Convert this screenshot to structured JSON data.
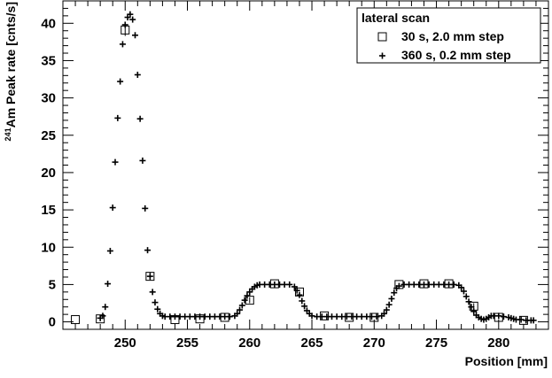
{
  "chart_data": {
    "type": "scatter",
    "xlabel": "Position [mm]",
    "ylabel": {
      "superscript": "241",
      "text": "Am Peak rate [cnts/s]"
    },
    "xlim": [
      245,
      284
    ],
    "ylim": [
      -1,
      43
    ],
    "x_ticks": [
      250,
      255,
      260,
      265,
      270,
      275,
      280
    ],
    "x_tick_labels": [
      "250",
      "255",
      "260",
      "265",
      "270",
      "275",
      "280"
    ],
    "y_ticks": [
      0,
      5,
      10,
      15,
      20,
      25,
      30,
      35,
      40
    ],
    "y_tick_labels": [
      "0",
      "5",
      "10",
      "15",
      "20",
      "25",
      "30",
      "35",
      "40"
    ],
    "grid": false,
    "legend": {
      "title": "lateral scan",
      "placement": "top-right"
    },
    "series": [
      {
        "name": "30 s, 2.0 mm step",
        "marker": "open-square",
        "color": "#000000",
        "points": [
          {
            "x": 246,
            "y": 0.3
          },
          {
            "x": 248,
            "y": 0.4
          },
          {
            "x": 250,
            "y": 39.1,
            "err": 0.8
          },
          {
            "x": 252,
            "y": 6.1,
            "err": 0.5
          },
          {
            "x": 254,
            "y": 0.3
          },
          {
            "x": 256,
            "y": 0.4
          },
          {
            "x": 258,
            "y": 0.6
          },
          {
            "x": 260,
            "y": 2.9,
            "err": 0.4
          },
          {
            "x": 262,
            "y": 5.1
          },
          {
            "x": 264,
            "y": 4.0
          },
          {
            "x": 266,
            "y": 0.8
          },
          {
            "x": 268,
            "y": 0.6
          },
          {
            "x": 270,
            "y": 0.6
          },
          {
            "x": 272,
            "y": 5.0
          },
          {
            "x": 274,
            "y": 5.1
          },
          {
            "x": 276,
            "y": 5.1
          },
          {
            "x": 278,
            "y": 2.1,
            "err": 0.4
          },
          {
            "x": 280,
            "y": 0.6
          },
          {
            "x": 282,
            "y": 0.2
          }
        ]
      },
      {
        "name": "360 s, 0.2 mm step",
        "marker": "plus",
        "color": "#000000",
        "points": [
          {
            "x": 248.0,
            "y": 0.5
          },
          {
            "x": 248.2,
            "y": 0.8
          },
          {
            "x": 248.4,
            "y": 2.0
          },
          {
            "x": 248.6,
            "y": 5.1
          },
          {
            "x": 248.8,
            "y": 9.5
          },
          {
            "x": 249.0,
            "y": 15.3
          },
          {
            "x": 249.2,
            "y": 21.4
          },
          {
            "x": 249.4,
            "y": 27.3
          },
          {
            "x": 249.6,
            "y": 32.2
          },
          {
            "x": 249.8,
            "y": 37.2
          },
          {
            "x": 250.0,
            "y": 39.8
          },
          {
            "x": 250.2,
            "y": 40.8
          },
          {
            "x": 250.4,
            "y": 41.2
          },
          {
            "x": 250.6,
            "y": 40.5
          },
          {
            "x": 250.8,
            "y": 38.4
          },
          {
            "x": 251.0,
            "y": 33.1
          },
          {
            "x": 251.2,
            "y": 27.2
          },
          {
            "x": 251.4,
            "y": 21.6
          },
          {
            "x": 251.6,
            "y": 15.2
          },
          {
            "x": 251.8,
            "y": 9.6
          },
          {
            "x": 252.0,
            "y": 6.1
          },
          {
            "x": 252.2,
            "y": 4.0
          },
          {
            "x": 252.4,
            "y": 2.6
          },
          {
            "x": 252.6,
            "y": 1.7
          },
          {
            "x": 252.8,
            "y": 1.1
          },
          {
            "x": 253.0,
            "y": 0.8
          },
          {
            "x": 253.2,
            "y": 0.7
          },
          {
            "x": 253.6,
            "y": 0.7
          },
          {
            "x": 254.0,
            "y": 0.7
          },
          {
            "x": 254.4,
            "y": 0.7
          },
          {
            "x": 254.8,
            "y": 0.7
          },
          {
            "x": 255.2,
            "y": 0.7
          },
          {
            "x": 255.6,
            "y": 0.7
          },
          {
            "x": 256.0,
            "y": 0.7
          },
          {
            "x": 256.4,
            "y": 0.7
          },
          {
            "x": 256.8,
            "y": 0.7
          },
          {
            "x": 257.2,
            "y": 0.7
          },
          {
            "x": 257.6,
            "y": 0.7
          },
          {
            "x": 258.0,
            "y": 0.7
          },
          {
            "x": 258.4,
            "y": 0.7
          },
          {
            "x": 258.8,
            "y": 0.8
          },
          {
            "x": 259.0,
            "y": 1.1
          },
          {
            "x": 259.2,
            "y": 1.6
          },
          {
            "x": 259.4,
            "y": 2.2
          },
          {
            "x": 259.6,
            "y": 2.9
          },
          {
            "x": 259.8,
            "y": 3.5
          },
          {
            "x": 260.0,
            "y": 4.0
          },
          {
            "x": 260.2,
            "y": 4.4
          },
          {
            "x": 260.4,
            "y": 4.7
          },
          {
            "x": 260.6,
            "y": 4.9
          },
          {
            "x": 260.8,
            "y": 5.0
          },
          {
            "x": 261.2,
            "y": 5.0
          },
          {
            "x": 261.6,
            "y": 5.0
          },
          {
            "x": 262.0,
            "y": 5.0
          },
          {
            "x": 262.4,
            "y": 5.0
          },
          {
            "x": 262.8,
            "y": 5.0
          },
          {
            "x": 263.2,
            "y": 5.0
          },
          {
            "x": 263.6,
            "y": 4.7
          },
          {
            "x": 263.8,
            "y": 4.2
          },
          {
            "x": 264.0,
            "y": 3.6
          },
          {
            "x": 264.2,
            "y": 2.8
          },
          {
            "x": 264.4,
            "y": 2.1
          },
          {
            "x": 264.6,
            "y": 1.5
          },
          {
            "x": 264.8,
            "y": 1.1
          },
          {
            "x": 265.0,
            "y": 0.8
          },
          {
            "x": 265.4,
            "y": 0.7
          },
          {
            "x": 265.8,
            "y": 0.7
          },
          {
            "x": 266.2,
            "y": 0.7
          },
          {
            "x": 266.6,
            "y": 0.7
          },
          {
            "x": 267.0,
            "y": 0.7
          },
          {
            "x": 267.4,
            "y": 0.7
          },
          {
            "x": 267.8,
            "y": 0.7
          },
          {
            "x": 268.2,
            "y": 0.7
          },
          {
            "x": 268.6,
            "y": 0.7
          },
          {
            "x": 269.0,
            "y": 0.7
          },
          {
            "x": 269.4,
            "y": 0.7
          },
          {
            "x": 269.8,
            "y": 0.7
          },
          {
            "x": 270.2,
            "y": 0.7
          },
          {
            "x": 270.6,
            "y": 0.8
          },
          {
            "x": 270.8,
            "y": 1.1
          },
          {
            "x": 271.0,
            "y": 1.6
          },
          {
            "x": 271.2,
            "y": 2.3
          },
          {
            "x": 271.4,
            "y": 3.1
          },
          {
            "x": 271.6,
            "y": 3.9
          },
          {
            "x": 271.8,
            "y": 4.5
          },
          {
            "x": 272.0,
            "y": 4.8
          },
          {
            "x": 272.4,
            "y": 5.0
          },
          {
            "x": 272.8,
            "y": 5.0
          },
          {
            "x": 273.2,
            "y": 5.0
          },
          {
            "x": 273.6,
            "y": 5.0
          },
          {
            "x": 274.0,
            "y": 5.0
          },
          {
            "x": 274.4,
            "y": 5.0
          },
          {
            "x": 274.8,
            "y": 5.0
          },
          {
            "x": 275.2,
            "y": 5.0
          },
          {
            "x": 275.6,
            "y": 5.0
          },
          {
            "x": 276.0,
            "y": 5.0
          },
          {
            "x": 276.4,
            "y": 5.0
          },
          {
            "x": 276.8,
            "y": 4.9
          },
          {
            "x": 277.0,
            "y": 4.6
          },
          {
            "x": 277.2,
            "y": 4.1
          },
          {
            "x": 277.4,
            "y": 3.4
          },
          {
            "x": 277.6,
            "y": 2.7
          },
          {
            "x": 277.8,
            "y": 2.0
          },
          {
            "x": 278.0,
            "y": 1.4
          },
          {
            "x": 278.2,
            "y": 0.9
          },
          {
            "x": 278.4,
            "y": 0.6
          },
          {
            "x": 278.6,
            "y": 0.4
          },
          {
            "x": 278.8,
            "y": 0.3
          },
          {
            "x": 279.0,
            "y": 0.4
          },
          {
            "x": 279.2,
            "y": 0.6
          },
          {
            "x": 279.4,
            "y": 0.8
          },
          {
            "x": 279.6,
            "y": 0.8
          },
          {
            "x": 280.0,
            "y": 0.8
          },
          {
            "x": 280.4,
            "y": 0.7
          },
          {
            "x": 280.8,
            "y": 0.6
          },
          {
            "x": 281.0,
            "y": 0.5
          },
          {
            "x": 281.2,
            "y": 0.4
          },
          {
            "x": 281.4,
            "y": 0.3
          },
          {
            "x": 281.8,
            "y": 0.3
          },
          {
            "x": 282.2,
            "y": 0.2
          },
          {
            "x": 282.6,
            "y": 0.2
          },
          {
            "x": 282.8,
            "y": 0.2
          }
        ]
      }
    ]
  }
}
